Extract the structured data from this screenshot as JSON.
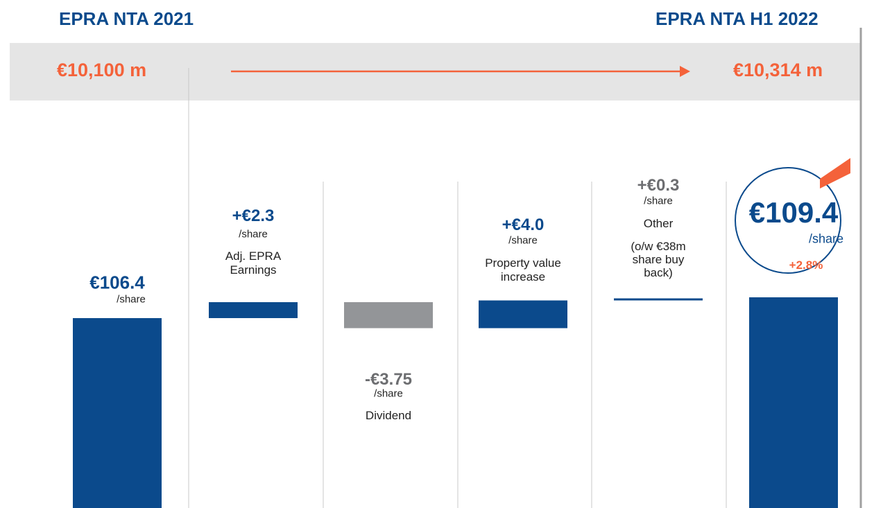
{
  "chart_data": {
    "type": "waterfall",
    "categories": [
      "EPRA NTA 2021",
      "Adj. EPRA Earnings",
      "Dividend",
      "Property value increase",
      "Other",
      "EPRA NTA H1 2022"
    ],
    "measure": [
      "absolute",
      "relative",
      "relative",
      "relative",
      "relative",
      "total"
    ],
    "values": [
      106.4,
      2.3,
      -3.75,
      4.0,
      0.3,
      109.4
    ],
    "value_labels": [
      "€106.4",
      "+€2.3",
      "-€3.75",
      "+€4.0",
      "+€0.3",
      "€109.4"
    ],
    "colors": [
      "#0b4a8c",
      "#0b4a8c",
      "#939598",
      "#0b4a8c",
      "#0b4a8c",
      "#0b4a8c"
    ],
    "value_label_colors": [
      "#0b4a8c",
      "#0b4a8c",
      "#6d6e71",
      "#0b4a8c",
      "#6d6e71",
      "#0b4a8c"
    ],
    "unit": "/share",
    "other_note": "(o/w €38m share buy back)",
    "total_change": {
      "value": 2.8,
      "label": "+2.8%"
    },
    "nta_totals": [
      {
        "value": 10100,
        "label": "€10,100 m"
      },
      {
        "value": 10314,
        "label": "€10,314 m"
      }
    ],
    "ylim": [
      79,
      112
    ]
  }
}
